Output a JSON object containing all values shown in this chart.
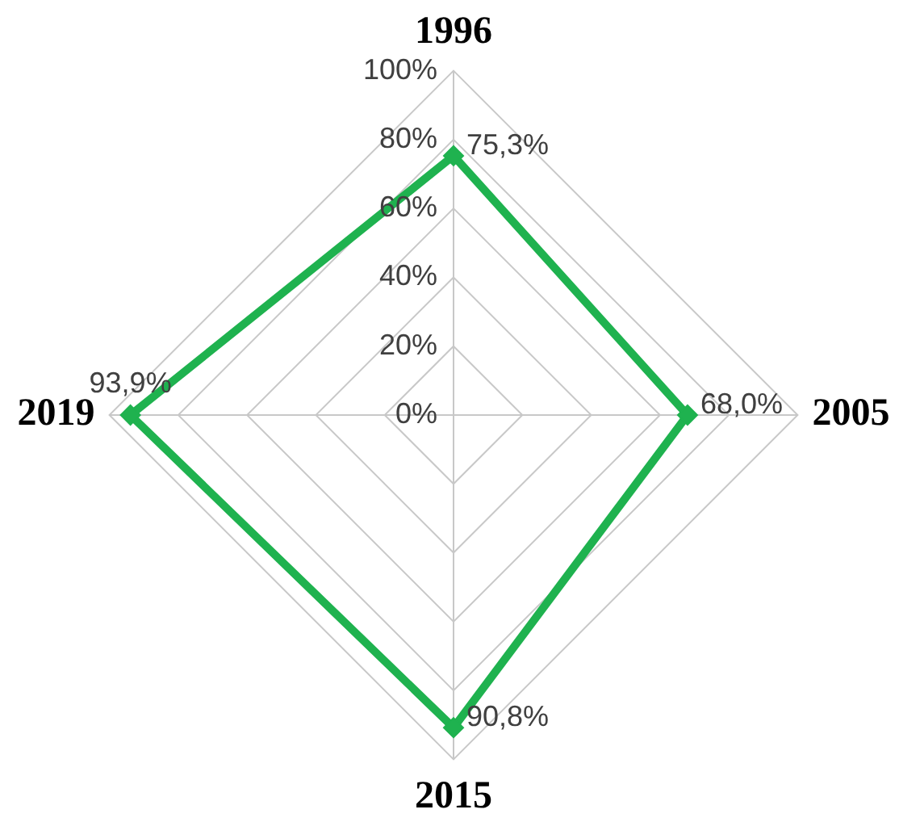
{
  "chart_data": {
    "type": "radar",
    "categories": [
      "1996",
      "2005",
      "2015",
      "2019"
    ],
    "series": [
      {
        "color": "#1fb24f",
        "values": [
          75.3,
          68.0,
          90.8,
          93.9
        ],
        "value_labels": [
          "75,3%",
          "68,0%",
          "90,8%",
          "93,9%"
        ]
      }
    ],
    "ylim": [
      0,
      100
    ],
    "yticks": [
      {
        "value": 0,
        "label": "0%"
      },
      {
        "value": 20,
        "label": "20%"
      },
      {
        "value": 40,
        "label": "40%"
      },
      {
        "value": 60,
        "label": "60%"
      },
      {
        "value": 80,
        "label": "80%"
      },
      {
        "value": 100,
        "label": "100%"
      }
    ],
    "grid": true,
    "marker": "diamond",
    "line_style": "solid"
  }
}
